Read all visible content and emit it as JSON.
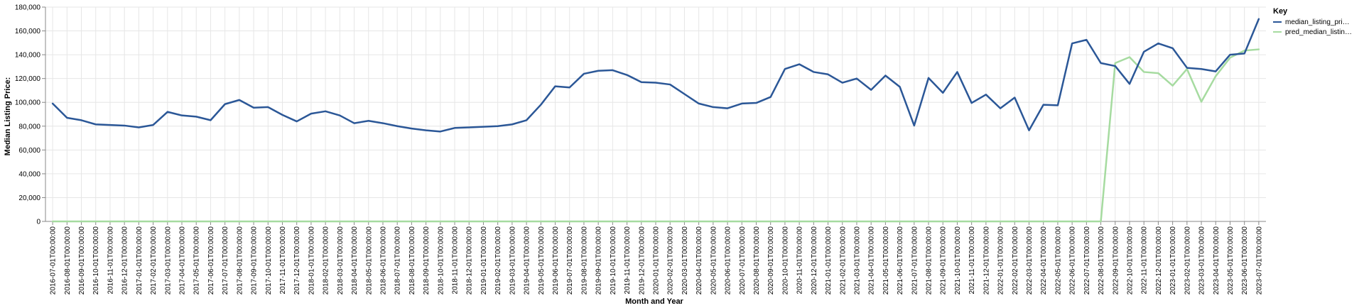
{
  "chart_data": {
    "type": "line",
    "title": "",
    "xlabel": "Month and Year",
    "ylabel": "Median Listing Price:",
    "ylim": [
      0,
      180000
    ],
    "y_ticks": [
      0,
      20000,
      40000,
      60000,
      80000,
      100000,
      120000,
      140000,
      160000,
      180000
    ],
    "y_tick_labels": [
      "0",
      "20,000",
      "40,000",
      "60,000",
      "80,000",
      "100,000",
      "120,000",
      "140,000",
      "160,000",
      "180,000"
    ],
    "grid": true,
    "legend": {
      "title": "Key",
      "position": "top-right",
      "entries": [
        "median_listing_pri…",
        "pred_median_listin…"
      ]
    },
    "categories": [
      "2016-07-01T00:00:00",
      "2016-08-01T00:00:00",
      "2016-09-01T00:00:00",
      "2016-10-01T00:00:00",
      "2016-11-01T00:00:00",
      "2016-12-01T00:00:00",
      "2017-01-01T00:00:00",
      "2017-02-01T00:00:00",
      "2017-03-01T00:00:00",
      "2017-04-01T00:00:00",
      "2017-05-01T00:00:00",
      "2017-06-01T00:00:00",
      "2017-07-01T00:00:00",
      "2017-08-01T00:00:00",
      "2017-09-01T00:00:00",
      "2017-10-01T00:00:00",
      "2017-11-01T00:00:00",
      "2017-12-01T00:00:00",
      "2018-01-01T00:00:00",
      "2018-02-01T00:00:00",
      "2018-03-01T00:00:00",
      "2018-04-01T00:00:00",
      "2018-05-01T00:00:00",
      "2018-06-01T00:00:00",
      "2018-07-01T00:00:00",
      "2018-08-01T00:00:00",
      "2018-09-01T00:00:00",
      "2018-10-01T00:00:00",
      "2018-11-01T00:00:00",
      "2018-12-01T00:00:00",
      "2019-01-01T00:00:00",
      "2019-02-01T00:00:00",
      "2019-03-01T00:00:00",
      "2019-04-01T00:00:00",
      "2019-05-01T00:00:00",
      "2019-06-01T00:00:00",
      "2019-07-01T00:00:00",
      "2019-08-01T00:00:00",
      "2019-09-01T00:00:00",
      "2019-10-01T00:00:00",
      "2019-11-01T00:00:00",
      "2019-12-01T00:00:00",
      "2020-01-01T00:00:00",
      "2020-02-01T00:00:00",
      "2020-03-01T00:00:00",
      "2020-04-01T00:00:00",
      "2020-05-01T00:00:00",
      "2020-06-01T00:00:00",
      "2020-07-01T00:00:00",
      "2020-08-01T00:00:00",
      "2020-09-01T00:00:00",
      "2020-10-01T00:00:00",
      "2020-11-01T00:00:00",
      "2020-12-01T00:00:00",
      "2021-01-01T00:00:00",
      "2021-02-01T00:00:00",
      "2021-03-01T00:00:00",
      "2021-04-01T00:00:00",
      "2021-05-01T00:00:00",
      "2021-06-01T00:00:00",
      "2021-07-01T00:00:00",
      "2021-08-01T00:00:00",
      "2021-09-01T00:00:00",
      "2021-10-01T00:00:00",
      "2021-11-01T00:00:00",
      "2021-12-01T00:00:00",
      "2022-01-01T00:00:00",
      "2022-02-01T00:00:00",
      "2022-03-01T00:00:00",
      "2022-04-01T00:00:00",
      "2022-05-01T00:00:00",
      "2022-06-01T00:00:00",
      "2022-07-01T00:00:00",
      "2022-08-01T00:00:00",
      "2022-09-01T00:00:00",
      "2022-10-01T00:00:00",
      "2022-11-01T00:00:00",
      "2022-12-01T00:00:00",
      "2023-01-01T00:00:00",
      "2023-02-01T00:00:00",
      "2023-03-01T00:00:00",
      "2023-04-01T00:00:00",
      "2023-05-01T00:00:00",
      "2023-06-01T00:00:00",
      "2023-07-01T00:00:00"
    ],
    "series": [
      {
        "name": "median_listing_pri…",
        "color": "#2b5797",
        "values": [
          99000,
          87000,
          85000,
          81500,
          81000,
          80500,
          79000,
          81000,
          92000,
          89000,
          88000,
          85000,
          98500,
          102000,
          95500,
          96000,
          89500,
          84000,
          90500,
          92500,
          89000,
          82500,
          84500,
          82500,
          80000,
          78000,
          76500,
          75500,
          78500,
          79000,
          79500,
          80000,
          81500,
          85000,
          98000,
          113500,
          112500,
          124000,
          126500,
          127000,
          123000,
          117000,
          116500,
          115000,
          107000,
          99000,
          96000,
          95000,
          99000,
          99500,
          104500,
          128000,
          132000,
          125500,
          123500,
          116500,
          120000,
          110500,
          122500,
          113000,
          80500,
          120500,
          108000,
          125500,
          99500,
          106500,
          95000,
          104000,
          76500,
          98000,
          97500,
          149500,
          152500,
          133000,
          130500,
          115500,
          142500,
          149500,
          145500,
          129000,
          128000,
          126000,
          140000,
          141000,
          170000
        ]
      },
      {
        "name": "pred_median_listin…",
        "color": "#a6dba0",
        "values": [
          0,
          0,
          0,
          0,
          0,
          0,
          0,
          0,
          0,
          0,
          0,
          0,
          0,
          0,
          0,
          0,
          0,
          0,
          0,
          0,
          0,
          0,
          0,
          0,
          0,
          0,
          0,
          0,
          0,
          0,
          0,
          0,
          0,
          0,
          0,
          0,
          0,
          0,
          0,
          0,
          0,
          0,
          0,
          0,
          0,
          0,
          0,
          0,
          0,
          0,
          0,
          0,
          0,
          0,
          0,
          0,
          0,
          0,
          0,
          0,
          0,
          0,
          0,
          0,
          0,
          0,
          0,
          0,
          0,
          0,
          0,
          0,
          0,
          0,
          133000,
          138000,
          125500,
          124500,
          114000,
          128000,
          100500,
          122000,
          137500,
          143500,
          144500
        ]
      }
    ]
  }
}
